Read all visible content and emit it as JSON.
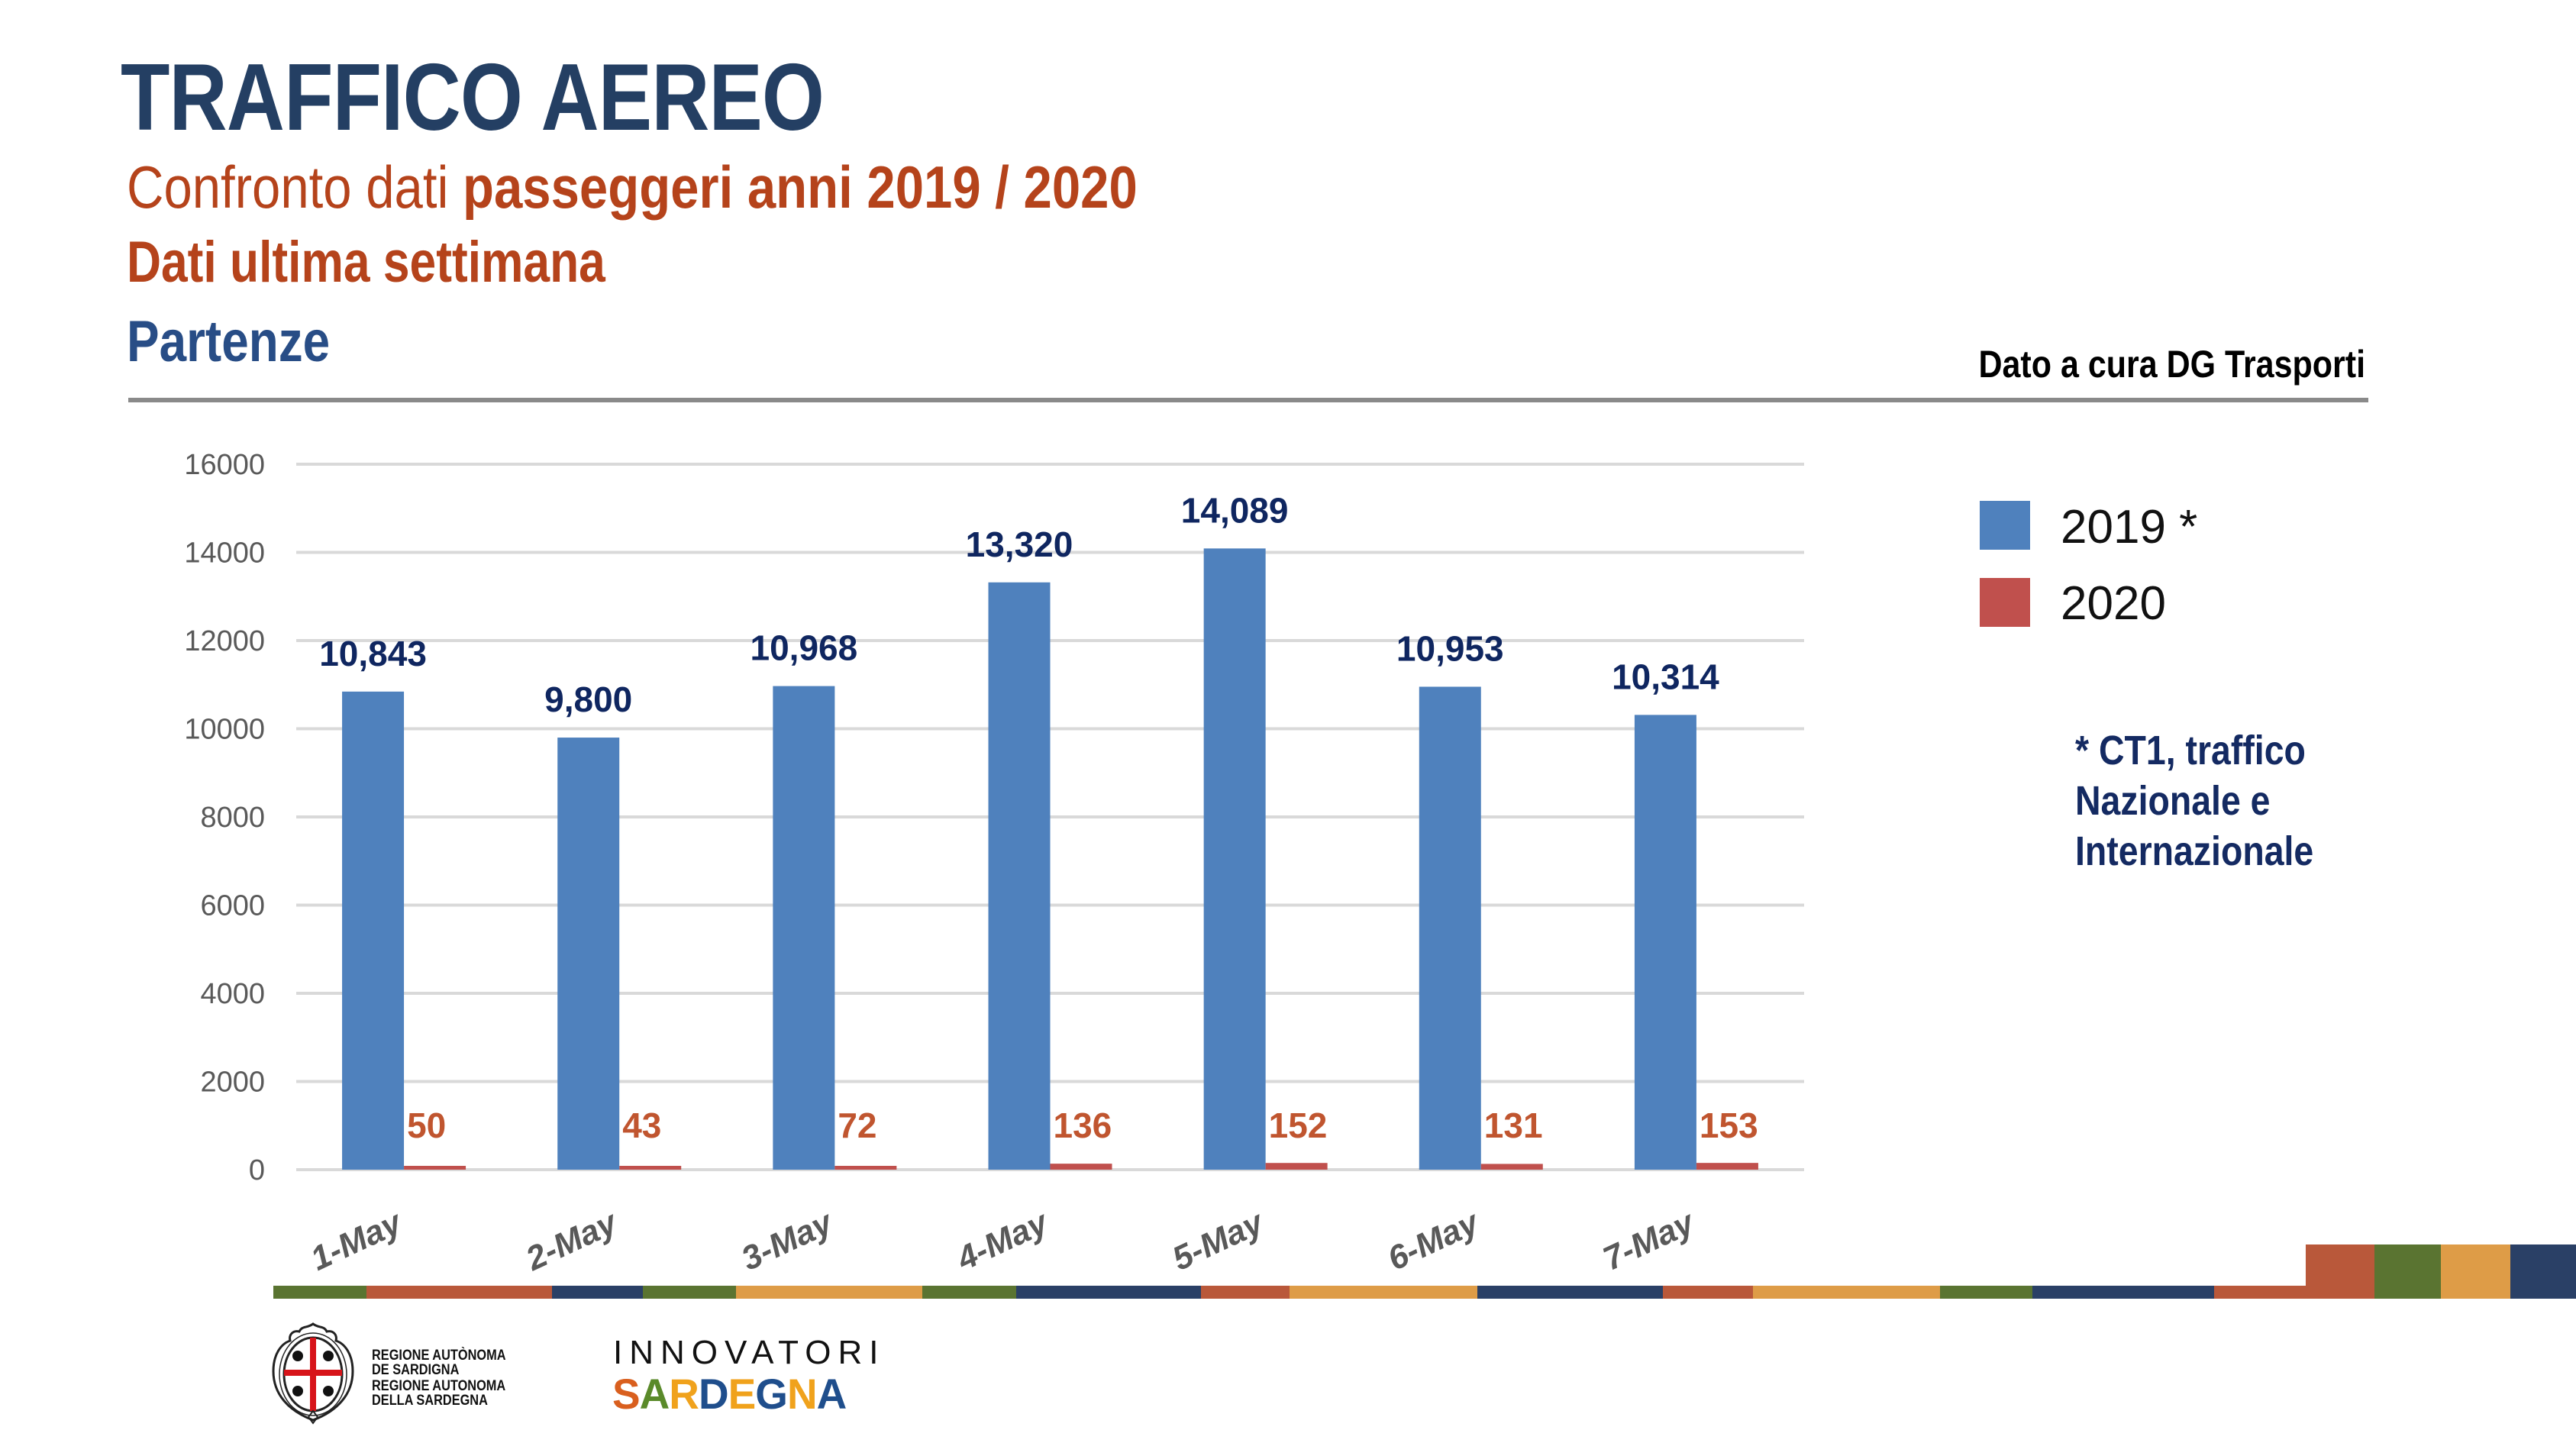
{
  "header": {
    "title": "TRAFFICO AEREO",
    "subtitle_regular": "Confronto dati ",
    "subtitle_bold": "passeggeri anni 2019 / 2020",
    "period": "Dati ultima settimana",
    "section": "Partenze",
    "credit": "Dato a cura DG Trasporti"
  },
  "note": {
    "lines": [
      "* CT1, traffico",
      "Nazionale e",
      "Internazionale"
    ]
  },
  "colors": {
    "series_2019": "#4f81bd",
    "series_2020": "#c0504d",
    "label_2019": "#0f2660",
    "label_2020": "#c0552f",
    "axis_text": "#595959",
    "gridline": "#d9d9d9",
    "strip": [
      "#5a7431",
      "#b9583a",
      "#2a4066",
      "#5a7431",
      "#de9c47",
      "#5a7431",
      "#2a4066",
      "#b9583a",
      "#de9c47",
      "#2a4066",
      "#b9583a",
      "#de9c47",
      "#5a7431",
      "#2a4066",
      "#b9583a"
    ],
    "blocks": [
      "#b9583a",
      "#5a7431",
      "#de9c47",
      "#2a4066"
    ]
  },
  "chart_data": {
    "type": "bar",
    "title": "",
    "xlabel": "",
    "ylabel": "",
    "categories": [
      "1-May",
      "2-May",
      "3-May",
      "4-May",
      "5-May",
      "6-May",
      "7-May"
    ],
    "series": [
      {
        "name": "2019 *",
        "values": [
          10843,
          9800,
          10968,
          13320,
          14089,
          10953,
          10314
        ],
        "labels": [
          "10,843",
          "9,800",
          "10,968",
          "13,320",
          "14,089",
          "10,953",
          "10,314"
        ]
      },
      {
        "name": "2020",
        "values": [
          50,
          43,
          72,
          136,
          152,
          131,
          153
        ],
        "labels": [
          "50",
          "43",
          "72",
          "136",
          "152",
          "131",
          "153"
        ]
      }
    ],
    "ylim": [
      0,
      16000
    ],
    "yticks": [
      0,
      2000,
      4000,
      6000,
      8000,
      10000,
      12000,
      14000,
      16000
    ],
    "ytick_labels": [
      "0",
      "2000",
      "4000",
      "6000",
      "8000",
      "10000",
      "12000",
      "14000",
      "16000"
    ],
    "grid": true,
    "legend_position": "right"
  },
  "footer": {
    "region_lines": [
      "REGIONE AUTÒNOMA",
      "DE SARDIGNA",
      "REGIONE AUTONOMA",
      "DELLA SARDEGNA"
    ],
    "innovatori": "INNOVATORI",
    "sardegna_letters": [
      "S",
      "A",
      "R",
      "D",
      "E",
      "G",
      "N",
      "A"
    ],
    "sardegna_colors": [
      "#d95f1e",
      "#5a8a2a",
      "#f0a21c",
      "#1f4e8c",
      "#f0a21c",
      "#1f4e8c",
      "#f0a21c",
      "#1f4e8c"
    ]
  }
}
